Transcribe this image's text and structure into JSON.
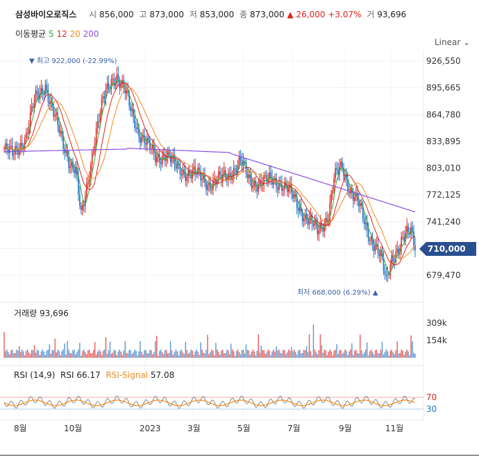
{
  "header": {
    "name": "삼성바이오로직스",
    "open_label": "시",
    "open": "856,000",
    "high_label": "고",
    "high": "873,000",
    "low_label": "저",
    "low": "853,000",
    "close_label": "종",
    "close": "873,000",
    "change_arrow": "▲",
    "change": "26,000",
    "change_pct": "+3.07%",
    "volume_label": "거",
    "volume": "93,696"
  },
  "ma_legend": {
    "label": "이동평균",
    "items": [
      {
        "text": "5",
        "color": "#2eaa3a"
      },
      {
        "text": "12",
        "color": "#e0231d"
      },
      {
        "text": "20",
        "color": "#f08c1c"
      },
      {
        "text": "200",
        "color": "#8b4fe0"
      }
    ]
  },
  "scale_selector": {
    "label": "Linear"
  },
  "chart_data": {
    "type": "line",
    "price_axis": {
      "ticks": [
        "926,550",
        "895,665",
        "864,780",
        "833,895",
        "803,010",
        "772,125",
        "741,240",
        "679,470"
      ],
      "values": [
        926550,
        895665,
        864780,
        833895,
        803010,
        772125,
        741240,
        679470
      ],
      "current": "710,000",
      "current_value": 710000
    },
    "x_ticks": [
      "8월",
      "10월",
      "2023",
      "3월",
      "5월",
      "7월",
      "9월",
      "11월"
    ],
    "annotations": {
      "high": {
        "arrow": "▼",
        "label": "최고",
        "value": "922,000",
        "pct": "(-22.99%)"
      },
      "low": {
        "label": "최저",
        "value": "668,000",
        "pct": "(6.29%)",
        "arrow": "▲"
      }
    },
    "volume": {
      "title": "거래량",
      "value": "93,696",
      "ticks": [
        "309k",
        "154k"
      ]
    },
    "rsi": {
      "title": "RSI (14,9)",
      "rsi_label": "RSI",
      "rsi_value": "66.17",
      "signal_label": "RSI-Signal",
      "signal_value": "57.08",
      "levels": [
        "70",
        "30"
      ]
    },
    "colors": {
      "up": "#e0231d",
      "down": "#1a73c7",
      "ma5": "#2eaa3a",
      "ma12": "#e0231d",
      "ma20": "#f08c1c",
      "ma200": "#8b4fe0",
      "rsi": "#888888",
      "signal": "#f08c1c",
      "tag": "#2a4f8f"
    }
  }
}
